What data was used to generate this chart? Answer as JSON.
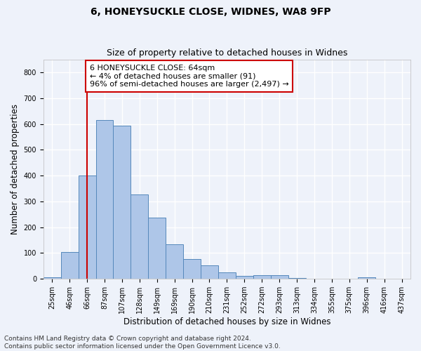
{
  "title": "6, HONEYSUCKLE CLOSE, WIDNES, WA8 9FP",
  "subtitle": "Size of property relative to detached houses in Widnes",
  "xlabel": "Distribution of detached houses by size in Widnes",
  "ylabel": "Number of detached properties",
  "bar_labels": [
    "25sqm",
    "46sqm",
    "66sqm",
    "87sqm",
    "107sqm",
    "128sqm",
    "149sqm",
    "169sqm",
    "190sqm",
    "210sqm",
    "231sqm",
    "252sqm",
    "272sqm",
    "293sqm",
    "313sqm",
    "334sqm",
    "355sqm",
    "375sqm",
    "396sqm",
    "416sqm",
    "437sqm"
  ],
  "bar_heights": [
    5,
    105,
    400,
    615,
    592,
    328,
    237,
    135,
    77,
    53,
    25,
    12,
    15,
    15,
    2,
    0,
    0,
    0,
    7,
    0,
    0
  ],
  "bar_color": "#aec6e8",
  "bar_edgecolor": "#5588bb",
  "ylim": [
    0,
    850
  ],
  "yticks": [
    0,
    100,
    200,
    300,
    400,
    500,
    600,
    700,
    800
  ],
  "property_bin_index": 2,
  "annotation_text": "6 HONEYSUCKLE CLOSE: 64sqm\n← 4% of detached houses are smaller (91)\n96% of semi-detached houses are larger (2,497) →",
  "annotation_box_color": "#ffffff",
  "annotation_box_edgecolor": "#cc0000",
  "vline_color": "#cc0000",
  "footer_text": "Contains HM Land Registry data © Crown copyright and database right 2024.\nContains public sector information licensed under the Open Government Licence v3.0.",
  "background_color": "#eef2fa",
  "grid_color": "#ffffff",
  "title_fontsize": 10,
  "subtitle_fontsize": 9,
  "annotation_fontsize": 8,
  "tick_label_fontsize": 7,
  "ylabel_fontsize": 8.5,
  "xlabel_fontsize": 8.5,
  "footer_fontsize": 6.5
}
